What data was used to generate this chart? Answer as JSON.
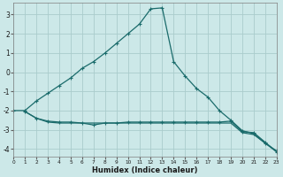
{
  "xlabel": "Humidex (Indice chaleur)",
  "bg_color": "#cce8e8",
  "grid_color": "#aacccc",
  "line_color": "#1a6b6b",
  "xlim": [
    0,
    23
  ],
  "ylim": [
    -4.4,
    3.6
  ],
  "yticks": [
    -4,
    -3,
    -2,
    -1,
    0,
    1,
    2,
    3
  ],
  "xticks": [
    0,
    1,
    2,
    3,
    4,
    5,
    6,
    7,
    8,
    9,
    10,
    11,
    12,
    13,
    14,
    15,
    16,
    17,
    18,
    19,
    20,
    21,
    22,
    23
  ],
  "line1_x": [
    0,
    1,
    2,
    3,
    4,
    5,
    6,
    7,
    8,
    9,
    10,
    11,
    12,
    13,
    14,
    15,
    16,
    17,
    18,
    19,
    20,
    21,
    22,
    23
  ],
  "line1_y": [
    -2.0,
    -2.0,
    -1.5,
    -1.1,
    -0.7,
    -0.3,
    0.2,
    0.55,
    1.0,
    1.5,
    2.0,
    2.5,
    3.3,
    3.35,
    0.55,
    -0.2,
    -0.85,
    -1.3,
    -2.0,
    -2.5,
    -3.05,
    -3.2,
    -3.7,
    -4.1
  ],
  "line2_x": [
    1,
    2,
    3,
    4,
    5,
    6,
    7,
    8,
    9,
    10,
    11,
    12,
    13,
    14,
    15,
    16,
    17,
    18,
    19,
    20,
    21,
    22,
    23
  ],
  "line2_y": [
    -2.05,
    -2.4,
    -2.55,
    -2.6,
    -2.6,
    -2.65,
    -2.75,
    -2.65,
    -2.65,
    -2.6,
    -2.6,
    -2.6,
    -2.6,
    -2.6,
    -2.6,
    -2.6,
    -2.6,
    -2.6,
    -2.55,
    -3.1,
    -3.15,
    -3.65,
    -4.15
  ],
  "line3_x": [
    1,
    2,
    3,
    4,
    5,
    6,
    7,
    8,
    9,
    10,
    11,
    12,
    13,
    14,
    15,
    16,
    17,
    18,
    19,
    20,
    21,
    22,
    23
  ],
  "line3_y": [
    -2.05,
    -2.4,
    -2.6,
    -2.65,
    -2.65,
    -2.65,
    -2.65,
    -2.65,
    -2.65,
    -2.65,
    -2.65,
    -2.65,
    -2.65,
    -2.65,
    -2.65,
    -2.65,
    -2.65,
    -2.65,
    -2.65,
    -3.15,
    -3.25,
    -3.7,
    -4.15
  ]
}
